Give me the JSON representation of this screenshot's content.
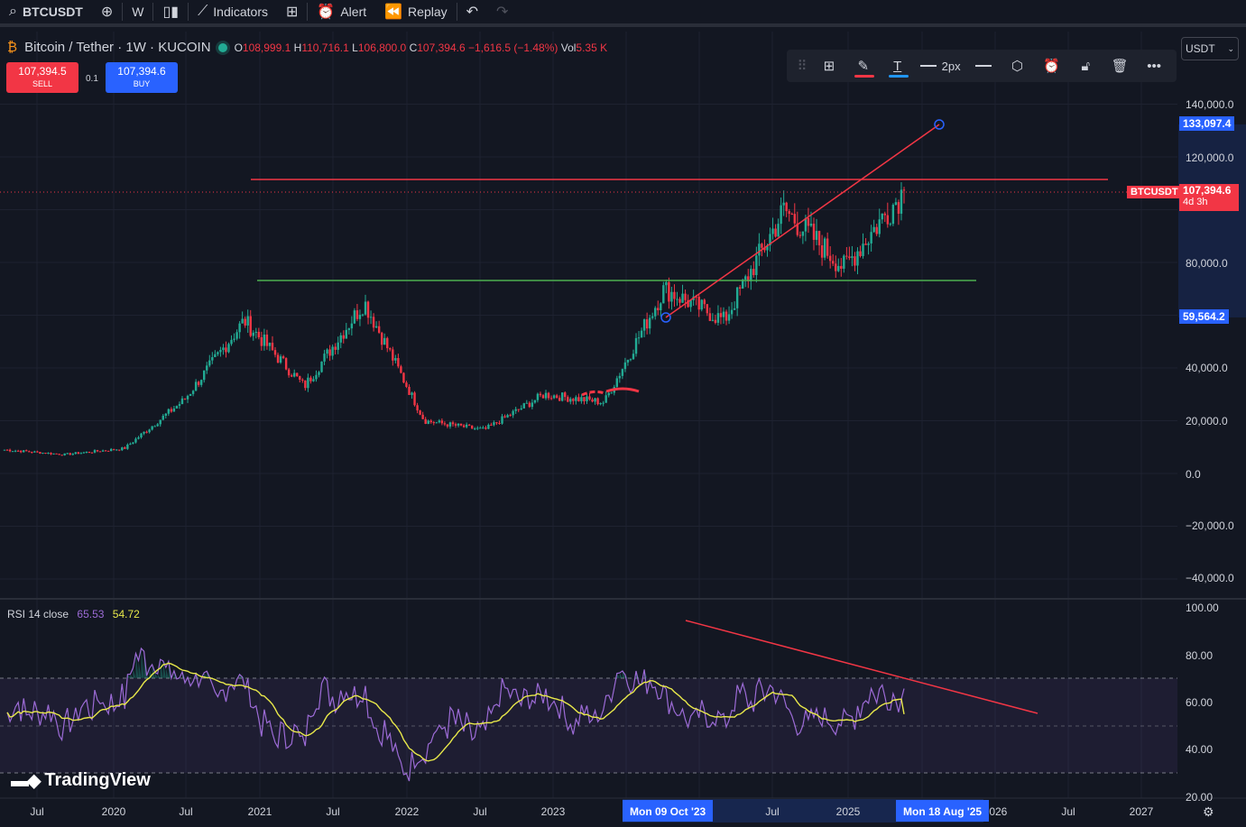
{
  "toolbar": {
    "symbol": "BTCUSDT",
    "interval": "W",
    "indicators": "Indicators",
    "alert": "Alert",
    "replay": "Replay"
  },
  "legend": {
    "title": "Bitcoin / Tether · 1W · KUCOIN",
    "o_label": "O",
    "o_value": "108,999.1",
    "h_label": "H",
    "h_value": "110,716.1",
    "l_label": "L",
    "l_value": "106,800.0",
    "c_label": "C",
    "c_value": "107,394.6",
    "change": "−1,616.5 (−1.48%)",
    "vol_label": "Vol",
    "vol_value": "5.35 K"
  },
  "trade": {
    "sell_price": "107,394.5",
    "sell_label": "SELL",
    "lot": "0.1",
    "buy_price": "107,394.6",
    "buy_label": "BUY"
  },
  "drawing_toolbar": {
    "width_label": "2px"
  },
  "currency": "USDT",
  "price_axis": [
    "140,000.0",
    "120,000.0",
    "80,000.0",
    "40,000.0",
    "20,000.0",
    "0.0",
    "−20,000.0",
    "−40,000.0"
  ],
  "price_tags": {
    "top": "133,097.4",
    "symbol": "BTCUSDT",
    "last": "107,394.6",
    "countdown": "4d 3h",
    "bottom": "59,564.2"
  },
  "rsi": {
    "name": "RSI 14 close",
    "value": "65.53",
    "ma_value": "54.72",
    "axis": [
      "100.00",
      "80.00",
      "60.00",
      "40.00",
      "20.00"
    ]
  },
  "watermark": "TradingView",
  "time_axis": [
    "Jul",
    "2020",
    "Jul",
    "2021",
    "Jul",
    "2022",
    "Jul",
    "2023",
    "Jul",
    "2025",
    "2026",
    "Jul",
    "2027"
  ],
  "time_tags": {
    "left": "Mon 09 Oct '23",
    "right": "Mon 18 Aug '25"
  },
  "colors": {
    "up": "#22ab94",
    "down": "#f23645",
    "accent": "#2962ff",
    "rsi": "#9c6bd6",
    "rsi_ma": "#e8e84a"
  },
  "chart_data": {
    "type": "candlestick",
    "ylim": [
      -40000,
      140000
    ],
    "series": [
      {
        "name": "BTCUSDT",
        "x": [
          "2019-06",
          "2019-12",
          "2020-06",
          "2020-12",
          "2021-04",
          "2021-07",
          "2021-11",
          "2022-06",
          "2022-12",
          "2023-06",
          "2023-10",
          "2024-03",
          "2024-08",
          "2024-12",
          "2025-04",
          "2025-06"
        ],
        "values": [
          9000,
          7200,
          9500,
          28000,
          58000,
          33000,
          65000,
          20000,
          16500,
          30000,
          27000,
          70000,
          58000,
          100000,
          78000,
          107394.6
        ]
      }
    ],
    "lines": [
      {
        "kind": "horizontal",
        "value": 111500,
        "color": "#f23645"
      },
      {
        "kind": "horizontal",
        "value": 73500,
        "color": "#4caf50"
      },
      {
        "kind": "trend",
        "from": 59564.2,
        "to": 133097.4,
        "color": "#f23645"
      }
    ],
    "rsi_ylim": [
      20,
      100
    ],
    "rsi_bands": [
      30,
      50,
      70
    ]
  }
}
